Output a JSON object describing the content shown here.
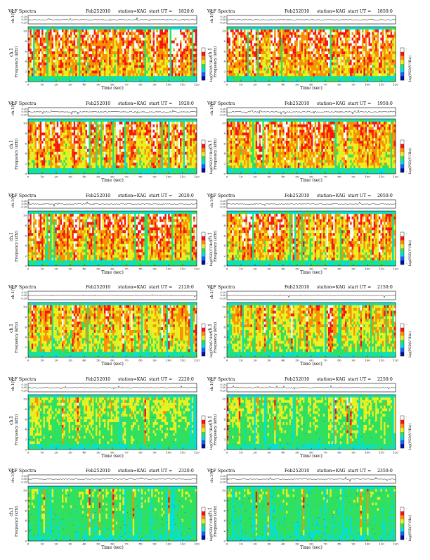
{
  "page": {
    "header": {
      "prefix": "VLF Spectra",
      "date": "Feb252010",
      "station": "station=KAG",
      "ut_label": "start  UT  ="
    },
    "waveform_axis": {
      "label": "ch.1(V)",
      "ticks": [
        "0.20",
        "0.00",
        "-0.20"
      ]
    },
    "spectrogram_axis": {
      "channel": "ch.1",
      "ylabel": "Frequency  (kHz)",
      "yticks": [
        "0",
        "2",
        "4",
        "6",
        "8",
        "10"
      ]
    },
    "time_axis": {
      "xlabel": "Time  (sec)",
      "xticks": [
        "0",
        "10",
        "20",
        "30",
        "40",
        "50",
        "60",
        "70",
        "80",
        "90",
        "100",
        "110",
        "120"
      ]
    },
    "colorbar": {
      "label": "log(PSD(V²/Hz))",
      "low": "-",
      "high": "-",
      "colors": [
        "#0010a0",
        "#1860ff",
        "#00e0e0",
        "#30e060",
        "#f0f020",
        "#ff9000",
        "#ff1010",
        "#ffffff"
      ]
    }
  },
  "chart_data": [
    {
      "type": "heatmap",
      "start_ut": "1820:0",
      "activity": 0.86,
      "xlim": [
        0,
        120
      ],
      "ylim": [
        0,
        10
      ]
    },
    {
      "type": "heatmap",
      "start_ut": "1850:0",
      "activity": 0.88,
      "xlim": [
        0,
        120
      ],
      "ylim": [
        0,
        10
      ]
    },
    {
      "type": "heatmap",
      "start_ut": "1920:0",
      "activity": 0.82,
      "xlim": [
        0,
        120
      ],
      "ylim": [
        0,
        10
      ]
    },
    {
      "type": "heatmap",
      "start_ut": "1950:0",
      "activity": 0.8,
      "xlim": [
        0,
        120
      ],
      "ylim": [
        0,
        10
      ]
    },
    {
      "type": "heatmap",
      "start_ut": "2020:0",
      "activity": 0.84,
      "xlim": [
        0,
        120
      ],
      "ylim": [
        0,
        10
      ]
    },
    {
      "type": "heatmap",
      "start_ut": "2050:0",
      "activity": 0.76,
      "xlim": [
        0,
        120
      ],
      "ylim": [
        0,
        10
      ]
    },
    {
      "type": "heatmap",
      "start_ut": "2120:0",
      "activity": 0.66,
      "xlim": [
        0,
        120
      ],
      "ylim": [
        0,
        10
      ]
    },
    {
      "type": "heatmap",
      "start_ut": "2150:0",
      "activity": 0.6,
      "xlim": [
        0,
        120
      ],
      "ylim": [
        0,
        10
      ]
    },
    {
      "type": "heatmap",
      "start_ut": "2220:0",
      "activity": 0.44,
      "xlim": [
        0,
        120
      ],
      "ylim": [
        0,
        10
      ]
    },
    {
      "type": "heatmap",
      "start_ut": "2250:0",
      "activity": 0.4,
      "xlim": [
        0,
        120
      ],
      "ylim": [
        0,
        10
      ]
    },
    {
      "type": "heatmap",
      "start_ut": "2320:0",
      "activity": 0.32,
      "xlim": [
        0,
        120
      ],
      "ylim": [
        0,
        10
      ]
    },
    {
      "type": "heatmap",
      "start_ut": "2350:0",
      "activity": 0.28,
      "xlim": [
        0,
        120
      ],
      "ylim": [
        0,
        10
      ]
    }
  ]
}
